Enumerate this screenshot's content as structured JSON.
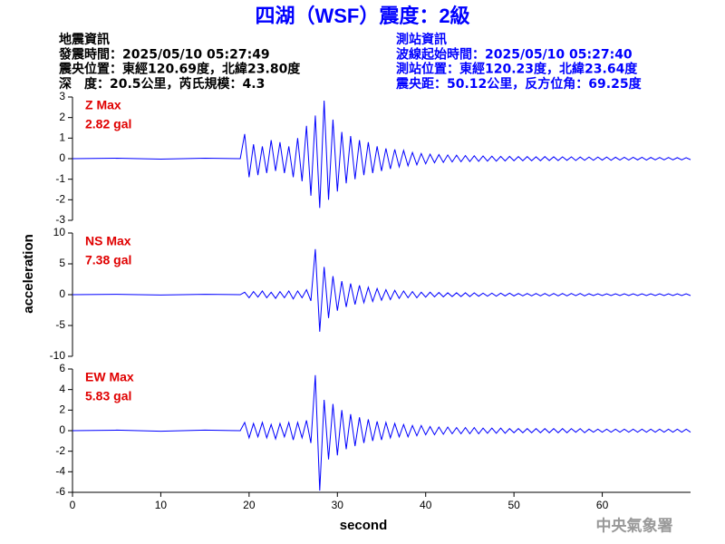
{
  "header": {
    "title": "四湖（WSF）震度：2級",
    "left": [
      "地震資訊",
      "發震時間：2025/05/10 05:27:49",
      "震央位置：東經120.69度，北緯23.80度",
      "深　度：20.5公里，芮氏規模：4.3"
    ],
    "right": [
      "測站資訊",
      "波線起始時間：2025/05/10 05:27:40",
      "測站位置：東經120.23度，北緯23.64度",
      "震央距：50.12公里，反方位角：69.25度"
    ],
    "watermark": "中央氣象署"
  },
  "chart_data": {
    "type": "line",
    "xlabel": "second",
    "ylabel": "acceleration",
    "label_color": "#e00000",
    "xlim": [
      0,
      70
    ],
    "xticks": [
      0,
      10,
      20,
      30,
      40,
      50,
      60
    ],
    "x": [
      0,
      5,
      10,
      15,
      19,
      19.5,
      20,
      20.5,
      21,
      21.5,
      22,
      22.5,
      23,
      23.5,
      24,
      24.5,
      25,
      25.5,
      26,
      26.5,
      27,
      27.5,
      28,
      28.5,
      29,
      29.5,
      30,
      30.5,
      31,
      31.5,
      32,
      32.5,
      33,
      33.5,
      34,
      34.5,
      35,
      35.5,
      36,
      36.5,
      37,
      37.5,
      38,
      38.5,
      39,
      39.5,
      40,
      40.5,
      41,
      41.5,
      42,
      42.5,
      43,
      43.5,
      44,
      44.5,
      45,
      45.5,
      46,
      46.5,
      47,
      47.5,
      48,
      48.5,
      49,
      49.5,
      50,
      50.5,
      51,
      51.5,
      52,
      52.5,
      53,
      53.5,
      54,
      54.5,
      55,
      55.5,
      56,
      56.5,
      57,
      57.5,
      58,
      58.5,
      59,
      59.5,
      60,
      60.5,
      61,
      61.5,
      62,
      62.5,
      63,
      63.5,
      64,
      64.5,
      65,
      65.5,
      66,
      66.5,
      67,
      67.5,
      68,
      68.5,
      69,
      69.5,
      70
    ],
    "series": [
      {
        "name": "Z Max",
        "label": "2.82 gal",
        "color": "#0000ff",
        "ylim": [
          -3,
          3
        ],
        "yticks": [
          -3,
          -2,
          -1,
          0,
          1,
          2,
          3
        ],
        "values": [
          0,
          0.02,
          -0.02,
          0.02,
          0,
          1.2,
          -0.9,
          0.7,
          -0.8,
          0.6,
          -0.7,
          0.9,
          -0.6,
          0.8,
          -0.7,
          0.6,
          -0.9,
          1.0,
          -1.1,
          1.6,
          -1.8,
          2.1,
          -2.4,
          2.82,
          -2.0,
          1.9,
          -1.6,
          1.3,
          -1.2,
          1.1,
          -1.0,
          0.9,
          -0.8,
          0.8,
          -0.7,
          0.6,
          -0.6,
          0.5,
          -0.5,
          0.45,
          -0.4,
          0.4,
          -0.35,
          0.3,
          -0.3,
          0.25,
          -0.25,
          0.22,
          -0.2,
          0.2,
          -0.18,
          0.18,
          -0.16,
          0.17,
          -0.15,
          0.15,
          -0.14,
          0.14,
          -0.13,
          0.13,
          -0.12,
          0.12,
          -0.12,
          0.11,
          -0.11,
          0.11,
          -0.1,
          0.1,
          -0.1,
          0.1,
          -0.1,
          0.09,
          -0.1,
          0.1,
          -0.09,
          0.09,
          -0.09,
          0.09,
          -0.08,
          0.09,
          -0.09,
          0.08,
          -0.08,
          0.08,
          -0.08,
          0.08,
          -0.07,
          0.08,
          -0.08,
          0.07,
          -0.07,
          0.07,
          -0.07,
          0.07,
          -0.06,
          0.07,
          -0.07,
          0.06,
          -0.06,
          0.06,
          -0.06,
          0.06,
          -0.06,
          0.05,
          -0.06,
          0.05,
          -0.05
        ]
      },
      {
        "name": "NS Max",
        "label": "7.38 gal",
        "color": "#0000ff",
        "ylim": [
          -10,
          10
        ],
        "yticks": [
          -10,
          -5,
          0,
          5,
          10
        ],
        "values": [
          0,
          0.05,
          -0.05,
          0.05,
          0,
          0.4,
          -0.5,
          0.5,
          -0.4,
          0.6,
          -0.5,
          0.4,
          -0.6,
          0.5,
          -0.5,
          0.6,
          -0.7,
          0.6,
          -0.5,
          0.8,
          -1.0,
          7.38,
          -6.0,
          4.5,
          -3.8,
          3.0,
          -2.6,
          2.2,
          -2.0,
          1.8,
          -1.6,
          1.5,
          -1.3,
          1.2,
          -1.1,
          1.0,
          -0.9,
          0.8,
          -0.8,
          0.7,
          -0.6,
          0.6,
          -0.5,
          0.5,
          -0.5,
          0.4,
          -0.4,
          0.4,
          -0.35,
          0.35,
          -0.35,
          0.3,
          -0.3,
          0.3,
          -0.3,
          0.3,
          -0.3,
          0.3,
          -0.25,
          0.25,
          -0.25,
          0.25,
          -0.25,
          0.25,
          -0.2,
          0.25,
          -0.2,
          0.2,
          -0.2,
          0.2,
          -0.2,
          0.2,
          -0.2,
          0.2,
          -0.2,
          0.2,
          -0.2,
          0.2,
          -0.2,
          0.2,
          -0.15,
          0.2,
          -0.2,
          0.15,
          -0.15,
          0.15,
          -0.15,
          0.15,
          -0.15,
          0.15,
          -0.15,
          0.15,
          -0.15,
          0.15,
          -0.15,
          0.15,
          -0.15,
          0.15,
          -0.15,
          0.15,
          -0.15,
          0.15,
          -0.15,
          0.15,
          -0.15,
          0.15,
          -0.15
        ]
      },
      {
        "name": "EW Max",
        "label": "5.83 gal",
        "color": "#0000ff",
        "ylim": [
          -6,
          6
        ],
        "yticks": [
          -6,
          -4,
          -2,
          0,
          2,
          4,
          6
        ],
        "values": [
          0,
          0.05,
          -0.05,
          0.05,
          0,
          0.8,
          -0.7,
          0.7,
          -0.6,
          0.8,
          -0.7,
          0.6,
          -0.8,
          0.7,
          -0.6,
          0.8,
          -0.9,
          0.8,
          -0.7,
          1.0,
          -1.2,
          5.4,
          -5.83,
          3.0,
          -2.8,
          2.6,
          -2.4,
          2.0,
          -1.8,
          1.6,
          -1.5,
          1.3,
          -1.2,
          1.1,
          -1.0,
          0.9,
          -0.9,
          0.8,
          -0.7,
          0.7,
          -0.6,
          0.6,
          -0.6,
          0.5,
          -0.5,
          0.5,
          -0.4,
          0.4,
          -0.4,
          0.35,
          -0.35,
          0.35,
          -0.3,
          0.3,
          -0.3,
          0.3,
          -0.3,
          0.3,
          -0.3,
          0.25,
          -0.25,
          0.25,
          -0.25,
          0.25,
          -0.25,
          0.2,
          -0.2,
          0.2,
          -0.2,
          0.2,
          -0.2,
          0.2,
          -0.2,
          0.2,
          -0.2,
          0.2,
          -0.2,
          0.2,
          -0.2,
          0.2,
          -0.15,
          0.2,
          -0.2,
          0.15,
          -0.15,
          0.15,
          -0.15,
          0.15,
          -0.15,
          0.15,
          -0.15,
          0.15,
          -0.15,
          0.15,
          -0.15,
          0.15,
          -0.15,
          0.15,
          -0.15,
          0.15,
          -0.15,
          0.15,
          -0.15,
          0.15,
          -0.15,
          0.15,
          -0.15
        ]
      }
    ]
  }
}
